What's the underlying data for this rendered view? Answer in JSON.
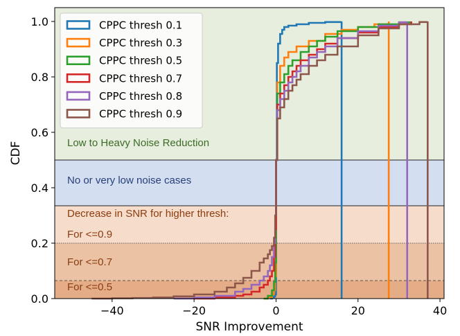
{
  "chart_data": {
    "type": "line",
    "title": "",
    "xlabel": "SNR Improvement",
    "ylabel": "CDF",
    "xlim": [
      -54,
      41
    ],
    "ylim": [
      0,
      1.05
    ],
    "xticks": [
      -40,
      -20,
      0,
      20,
      40
    ],
    "yticks": [
      0.0,
      0.2,
      0.4,
      0.6,
      0.8,
      1.0
    ],
    "xtick_labels": [
      "−40",
      "−20",
      "0",
      "20",
      "40"
    ],
    "ytick_labels": [
      "0.0",
      "0.2",
      "0.4",
      "0.6",
      "0.8",
      "1.0"
    ],
    "legend_position": "top-left",
    "regions": [
      {
        "name": "heavy",
        "y0": 0.5,
        "y1": 1.05,
        "color": "#e8eede",
        "label": "Low to Heavy Noise Reduction",
        "label_color": "#3b6b27",
        "label_y": 0.55
      },
      {
        "name": "low",
        "y0": 0.335,
        "y1": 0.5,
        "color": "#d3def0",
        "label": "No or very low noise cases",
        "label_color": "#27407a",
        "label_y": 0.415
      },
      {
        "name": "decrease",
        "y0": 0.2,
        "y1": 0.335,
        "color": "#f6dcca",
        "label": "Decrease in SNR for higher thresh:",
        "label_color": "#8a3c0f",
        "label_y": 0.295
      },
      {
        "name": "le09",
        "y0": 0.065,
        "y1": 0.2,
        "color": "#ebc3a4",
        "label": "For <=0.9",
        "label_color": "#8a3c0f",
        "label_y": 0.22
      },
      {
        "name": "le05",
        "y0": 0,
        "y1": 0.065,
        "color": "#e4ad87",
        "label": "For <=0.5",
        "label_color": "#8a3c0f",
        "label_y": 0.03
      }
    ],
    "extra_labels": [
      {
        "label": "For <=0.7",
        "label_color": "#8a3c0f",
        "label_y": 0.12
      }
    ],
    "series": [
      {
        "name": "CPPC thresh 0.1",
        "color": "#1f77b4",
        "x": [
          -1.5,
          -1,
          -0.5,
          -0.2,
          0,
          0.2,
          0.5,
          1,
          1.5,
          2,
          3,
          5,
          8,
          12,
          16,
          16
        ],
        "y": [
          0,
          0.003,
          0.008,
          0.015,
          0.5,
          0.85,
          0.92,
          0.955,
          0.97,
          0.98,
          0.985,
          0.99,
          0.995,
          0.998,
          1.0,
          0
        ]
      },
      {
        "name": "CPPC thresh 0.3",
        "color": "#ff7f0e",
        "x": [
          -3,
          -2,
          -1,
          -0.5,
          -0.2,
          0,
          0.3,
          1,
          2,
          3,
          5,
          8,
          12,
          16,
          20,
          24,
          27.5,
          27.5
        ],
        "y": [
          0,
          0.005,
          0.015,
          0.03,
          0.08,
          0.5,
          0.78,
          0.84,
          0.87,
          0.89,
          0.91,
          0.93,
          0.955,
          0.97,
          0.98,
          0.99,
          1.0,
          0
        ]
      },
      {
        "name": "CPPC thresh 0.5",
        "color": "#2ca02c",
        "x": [
          -3,
          -2,
          -1,
          -0.5,
          -0.2,
          0,
          0.3,
          1,
          2,
          3,
          4,
          6,
          8,
          10,
          12,
          15,
          20,
          25,
          30,
          33
        ],
        "y": [
          0,
          0.01,
          0.03,
          0.06,
          0.13,
          0.5,
          0.74,
          0.78,
          0.81,
          0.84,
          0.86,
          0.89,
          0.91,
          0.93,
          0.945,
          0.965,
          0.98,
          0.99,
          0.997,
          1.0
        ]
      },
      {
        "name": "CPPC thresh 0.7",
        "color": "#d62728",
        "x": [
          -20,
          -15,
          -10,
          -8,
          -6,
          -4,
          -3,
          -2,
          -1.5,
          -1,
          -0.5,
          -0.2,
          0,
          0.3,
          1,
          2,
          3,
          4,
          5,
          6,
          8,
          10,
          12,
          15,
          20,
          25,
          30,
          33
        ],
        "y": [
          0,
          0.004,
          0.01,
          0.015,
          0.025,
          0.04,
          0.05,
          0.065,
          0.08,
          0.1,
          0.15,
          0.25,
          0.5,
          0.7,
          0.74,
          0.77,
          0.8,
          0.82,
          0.84,
          0.86,
          0.88,
          0.9,
          0.92,
          0.94,
          0.96,
          0.98,
          0.99,
          1.0
        ]
      },
      {
        "name": "CPPC thresh 0.8",
        "color": "#9467bd",
        "x": [
          -25,
          -20,
          -15,
          -10,
          -8,
          -6,
          -4,
          -3,
          -2,
          -1.5,
          -1,
          -0.5,
          -0.2,
          0,
          0.3,
          1,
          2,
          3,
          4,
          5,
          6,
          8,
          10,
          12,
          15,
          20,
          25,
          30,
          32,
          32
        ],
        "y": [
          0,
          0.004,
          0.01,
          0.025,
          0.035,
          0.05,
          0.065,
          0.08,
          0.1,
          0.12,
          0.15,
          0.2,
          0.3,
          0.5,
          0.68,
          0.72,
          0.75,
          0.78,
          0.8,
          0.82,
          0.84,
          0.87,
          0.89,
          0.91,
          0.94,
          0.965,
          0.985,
          0.997,
          1.0,
          0
        ]
      },
      {
        "name": "CPPC thresh 0.9",
        "color": "#8c564b",
        "x": [
          -45,
          -40,
          -35,
          -30,
          -25,
          -20,
          -15,
          -12,
          -10,
          -8,
          -6,
          -4,
          -3,
          -2,
          -1.5,
          -1,
          -0.5,
          -0.2,
          0,
          0.3,
          1,
          2,
          3,
          4,
          5,
          6,
          8,
          10,
          12,
          15,
          20,
          25,
          30,
          35,
          37,
          37
        ],
        "y": [
          0,
          0.001,
          0.002,
          0.004,
          0.008,
          0.015,
          0.025,
          0.04,
          0.055,
          0.075,
          0.1,
          0.13,
          0.145,
          0.16,
          0.175,
          0.19,
          0.22,
          0.3,
          0.5,
          0.65,
          0.69,
          0.72,
          0.75,
          0.77,
          0.79,
          0.81,
          0.84,
          0.86,
          0.88,
          0.91,
          0.95,
          0.975,
          0.99,
          0.998,
          1.0,
          0
        ]
      }
    ]
  }
}
